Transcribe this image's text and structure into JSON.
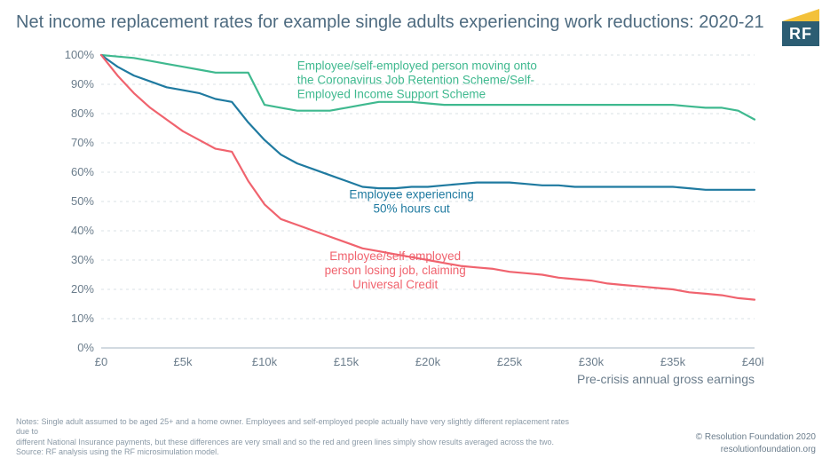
{
  "title": "Net income replacement rates for example single adults experiencing work reductions: 2020-21",
  "logo_text": "RF",
  "chart": {
    "type": "line",
    "x_label": "Pre-crisis annual gross earnings",
    "x_values": [
      0,
      1,
      2,
      3,
      4,
      5,
      6,
      7,
      8,
      9,
      10,
      11,
      12,
      13,
      14,
      15,
      16,
      17,
      18,
      19,
      20,
      21,
      22,
      23,
      24,
      25,
      26,
      27,
      28,
      29,
      30,
      31,
      32,
      33,
      34,
      35,
      36,
      37,
      38,
      39,
      40
    ],
    "x_ticks": [
      0,
      5,
      10,
      15,
      20,
      25,
      30,
      35,
      40
    ],
    "x_tick_labels": [
      "£0",
      "£5k",
      "£10k",
      "£15k",
      "£20k",
      "£25k",
      "£30k",
      "£35k",
      "£40k"
    ],
    "y_ticks": [
      0,
      10,
      20,
      30,
      40,
      50,
      60,
      70,
      80,
      90,
      100
    ],
    "y_tick_format": "%",
    "ylim": [
      0,
      100
    ],
    "xlim": [
      0,
      40
    ],
    "background_color": "#ffffff",
    "grid_color": "#d9e0e6",
    "grid_dash": "3,4",
    "axis_line_color": "#b8c4cf",
    "tick_label_color": "#6b7d8c",
    "tick_label_fontsize": 13,
    "axis_label_fontsize": 14,
    "line_width": 2.2,
    "series": [
      {
        "key": "jrs",
        "label": "Employee/self-employed person moving onto the Coronavirus Job Retention Scheme/Self-Employed Income Support Scheme",
        "color": "#3fb98f",
        "label_x": 12,
        "label_y": 95,
        "label_anchor": "start",
        "label_lines": [
          "Employee/self-employed person moving onto",
          "the Coronavirus Job Retention Scheme/Self-",
          "Employed Income Support Scheme"
        ],
        "values": [
          100,
          99.5,
          99,
          98,
          97,
          96,
          95,
          94,
          94,
          94,
          83,
          82,
          81,
          81,
          81,
          82,
          83,
          84,
          84,
          84,
          83.5,
          83,
          83,
          83,
          83,
          83,
          83,
          83,
          83,
          83,
          83,
          83,
          83,
          83,
          83,
          83,
          82.5,
          82,
          82,
          81,
          78
        ]
      },
      {
        "key": "fifty",
        "label": "Employee experiencing 50% hours cut",
        "color": "#1f7aa0",
        "label_x": 19,
        "label_y": 51,
        "label_anchor": "middle",
        "label_lines": [
          "Employee experiencing",
          "50% hours cut"
        ],
        "values": [
          100,
          96,
          93,
          91,
          89,
          88,
          87,
          85,
          84,
          77,
          71,
          66,
          63,
          61,
          59,
          57,
          55,
          54.5,
          54.5,
          55,
          55,
          55.5,
          56,
          56.5,
          56.5,
          56.5,
          56,
          55.5,
          55.5,
          55,
          55,
          55,
          55,
          55,
          55,
          55,
          54.5,
          54,
          54,
          54,
          54
        ]
      },
      {
        "key": "uc",
        "label": "Employee/self-employed person losing job, claiming Universal Credit",
        "color": "#f0636e",
        "label_x": 18,
        "label_y": 30,
        "label_anchor": "middle",
        "label_lines": [
          "Employee/self-employed",
          "person losing job, claiming",
          "Universal Credit"
        ],
        "values": [
          100,
          93,
          87,
          82,
          78,
          74,
          71,
          68,
          67,
          57,
          49,
          44,
          42,
          40,
          38,
          36,
          34,
          33,
          32,
          31,
          30,
          29,
          28,
          27.5,
          27,
          26,
          25.5,
          25,
          24,
          23.5,
          23,
          22,
          21.5,
          21,
          20.5,
          20,
          19,
          18.5,
          18,
          17,
          16.5
        ]
      }
    ]
  },
  "notes_lines": [
    "Notes: Single adult assumed to be aged 25+ and a home owner. Employees and self-employed people actually have very slightly different replacement rates due to",
    "different National Insurance payments, but these differences are very small and so the red and green lines simply show results averaged across the two.",
    "Source: RF analysis using the RF microsimulation model."
  ],
  "credit_lines": [
    "© Resolution Foundation 2020",
    "resolutionfoundation.org"
  ]
}
